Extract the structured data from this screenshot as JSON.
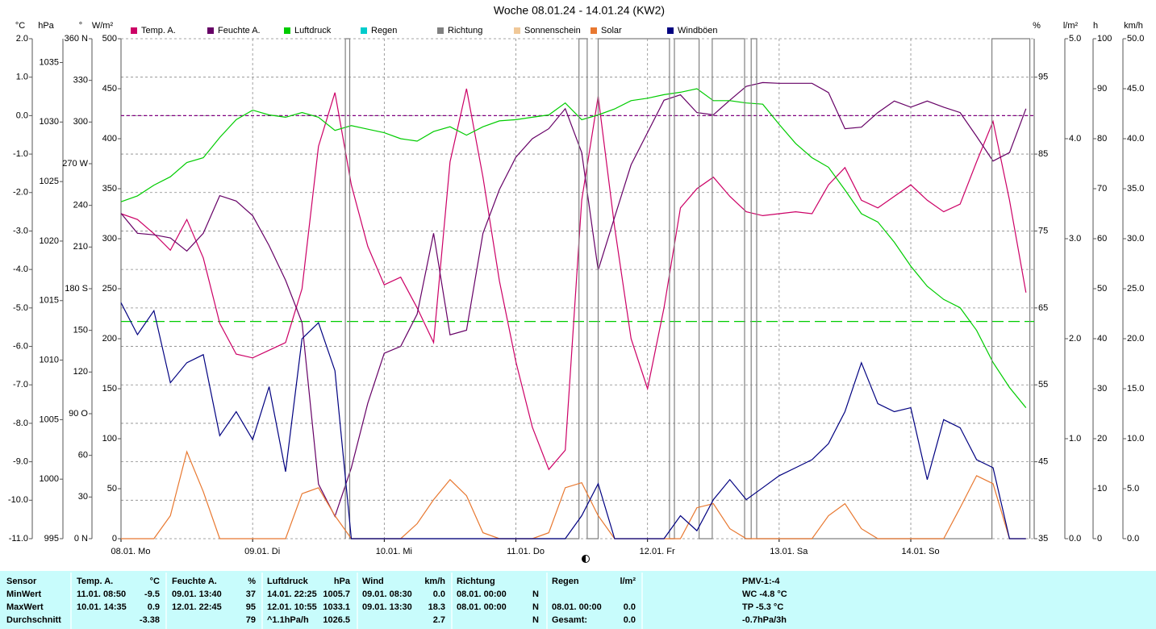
{
  "chart_data": {
    "type": "line",
    "title": "Woche 08.01.24 - 14.01.24 (KW2)",
    "xlim": [
      0,
      166.5
    ],
    "xticks": [
      {
        "value": 0,
        "label": "08.01. Mo"
      },
      {
        "value": 24,
        "label": "09.01. Di"
      },
      {
        "value": 48,
        "label": "10.01. Mi"
      },
      {
        "value": 72,
        "label": "11.01. Do"
      },
      {
        "value": 96,
        "label": "12.01. Fr"
      },
      {
        "value": 120,
        "label": "13.01. Sa"
      },
      {
        "value": 144,
        "label": "14.01. So"
      }
    ],
    "x": [
      0,
      3,
      6,
      9,
      12,
      15,
      18,
      21,
      24,
      27,
      30,
      33,
      36,
      39,
      42,
      45,
      48,
      51,
      54,
      57,
      60,
      63,
      66,
      69,
      72,
      75,
      78,
      81,
      84,
      87,
      90,
      93,
      96,
      99,
      102,
      105,
      108,
      111,
      114,
      117,
      120,
      123,
      126,
      129,
      132,
      135,
      138,
      141,
      144,
      147,
      150,
      153,
      156,
      159,
      162,
      165
    ],
    "axes": {
      "temp": {
        "label": "°C",
        "color": "#cc0066",
        "grid": true,
        "ylim": [
          -11,
          2
        ],
        "yticks": [
          {
            "value": 2,
            "label": "2.0"
          },
          {
            "value": 1,
            "label": "1.0"
          },
          {
            "value": 0,
            "label": "0.0"
          },
          {
            "value": -1,
            "label": "-1.0"
          },
          {
            "value": -2,
            "label": "-2.0"
          },
          {
            "value": -3,
            "label": "-3.0"
          },
          {
            "value": -4,
            "label": "-4.0"
          },
          {
            "value": -5,
            "label": "-5.0"
          },
          {
            "value": -6,
            "label": "-6.0"
          },
          {
            "value": -7,
            "label": "-7.0"
          },
          {
            "value": -8,
            "label": "-8.0"
          },
          {
            "value": -9,
            "label": "-9.0"
          },
          {
            "value": -10,
            "label": "-10.0"
          },
          {
            "value": -11,
            "label": "-11.0"
          }
        ]
      },
      "hpa": {
        "label": "hPa",
        "color": "#00bb00",
        "ylim": [
          995,
          1037
        ],
        "yticks": [
          995,
          1000,
          1005,
          1010,
          1015,
          1020,
          1025,
          1030,
          1035
        ]
      },
      "dir": {
        "label": "°",
        "color": "#808080",
        "ylim": [
          0,
          360
        ],
        "yticks": [
          {
            "value": 0,
            "label": "0 N"
          },
          30,
          60,
          {
            "value": 90,
            "label": "90 O"
          },
          120,
          150,
          {
            "value": 180,
            "label": "180 S"
          },
          210,
          240,
          {
            "value": 270,
            "label": "270 W"
          },
          300,
          330,
          {
            "value": 360,
            "label": "360 N"
          }
        ]
      },
      "solar": {
        "label": "W/m²",
        "color": "#e8702a",
        "ylim": [
          0,
          500
        ],
        "yticks": [
          0,
          50,
          100,
          150,
          200,
          250,
          300,
          350,
          400,
          450,
          500
        ]
      },
      "hum": {
        "label": "%",
        "color": "#800080",
        "ylim": [
          35,
          100
        ],
        "yticks": [
          35,
          45,
          55,
          65,
          75,
          85,
          95
        ]
      },
      "rain": {
        "label": "l/m²",
        "color": "#00cccc",
        "ylim": [
          0,
          5
        ],
        "yticks": [
          {
            "value": 0,
            "label": "0.0"
          },
          {
            "value": 1,
            "label": "1.0"
          },
          {
            "value": 2,
            "label": "2.0"
          },
          {
            "value": 3,
            "label": "3.0"
          },
          {
            "value": 4,
            "label": "4.0"
          },
          {
            "value": 5,
            "label": "5.0"
          }
        ]
      },
      "sun": {
        "label": "h",
        "color": "#f0c898",
        "ylim": [
          0,
          100
        ],
        "yticks": [
          0,
          10,
          20,
          30,
          40,
          50,
          60,
          70,
          80,
          90,
          100
        ]
      },
      "wind": {
        "label": "km/h",
        "color": "#000080",
        "ylim": [
          0,
          50
        ],
        "yticks": [
          {
            "value": 0,
            "label": "0.0"
          },
          {
            "value": 5,
            "label": "5.0"
          },
          {
            "value": 10,
            "label": "10.0"
          },
          {
            "value": 15,
            "label": "15.0"
          },
          {
            "value": 20,
            "label": "20.0"
          },
          {
            "value": 25,
            "label": "25.0"
          },
          {
            "value": 30,
            "label": "30.0"
          },
          {
            "value": 35,
            "label": "35.0"
          },
          {
            "value": 40,
            "label": "40.0"
          },
          {
            "value": 45,
            "label": "45.0"
          },
          {
            "value": 50,
            "label": "50.0"
          }
        ]
      }
    },
    "reference_lines": [
      {
        "axis": "temp",
        "value": 0,
        "color": "#800080"
      },
      {
        "axis": "hpa",
        "value": 1013.25,
        "color": "#00cc00"
      }
    ],
    "series": [
      {
        "name": "Temp. A.",
        "color": "#cc0066",
        "axis": "temp",
        "values": [
          -2.55,
          -2.7,
          -3.07,
          -3.5,
          -2.7,
          -3.7,
          -5.4,
          -6.2,
          -6.3,
          -6.1,
          -5.9,
          -4.5,
          -0.8,
          0.6,
          -1.8,
          -3.4,
          -4.4,
          -4.2,
          -5.0,
          -5.9,
          -1.2,
          0.7,
          -1.6,
          -4.3,
          -6.4,
          -8.1,
          -9.2,
          -8.7,
          -2.2,
          0.5,
          -2.9,
          -5.8,
          -7.1,
          -5.0,
          -2.4,
          -1.9,
          -1.6,
          -2.1,
          -2.5,
          -2.6,
          -2.55,
          -2.5,
          -2.55,
          -1.8,
          -1.35,
          -2.2,
          -2.4,
          -2.1,
          -1.8,
          -2.2,
          -2.5,
          -2.3,
          -1.2,
          -0.15,
          -2.2,
          -4.6
        ]
      },
      {
        "name": "Feuchte A.",
        "color": "#660066",
        "axis": "hum",
        "values": [
          77.3,
          74.7,
          74.5,
          74.1,
          72.4,
          74.7,
          79.6,
          78.9,
          77.0,
          73.1,
          68.6,
          63.1,
          42.1,
          37.9,
          44.2,
          52.6,
          59.1,
          60.0,
          64.2,
          74.7,
          61.5,
          62.1,
          74.7,
          80.4,
          84.6,
          87.0,
          88.3,
          90.9,
          85.2,
          69.9,
          76.8,
          83.6,
          87.8,
          92.0,
          92.7,
          90.4,
          90.1,
          92.0,
          93.8,
          94.3,
          94.2,
          94.2,
          94.2,
          93.0,
          88.3,
          88.5,
          90.4,
          91.9,
          91.1,
          91.9,
          91.1,
          90.4,
          87.3,
          84.1,
          85.2,
          90.9
        ]
      },
      {
        "name": "Luftdruck",
        "color": "#00cc00",
        "axis": "hpa",
        "values": [
          1023.3,
          1023.8,
          1024.7,
          1025.4,
          1026.6,
          1027.0,
          1028.7,
          1030.2,
          1031.0,
          1030.6,
          1030.4,
          1030.8,
          1030.4,
          1029.3,
          1029.7,
          1029.4,
          1029.1,
          1028.6,
          1028.4,
          1029.2,
          1029.6,
          1028.9,
          1029.6,
          1030.1,
          1030.2,
          1030.4,
          1030.6,
          1031.6,
          1030.2,
          1030.6,
          1031.1,
          1031.8,
          1032.0,
          1032.3,
          1032.5,
          1032.8,
          1031.8,
          1031.8,
          1031.6,
          1031.5,
          1029.8,
          1028.2,
          1027.0,
          1026.2,
          1024.3,
          1022.3,
          1021.6,
          1019.9,
          1017.9,
          1016.2,
          1015.1,
          1014.4,
          1012.5,
          1009.8,
          1007.7,
          1006.0
        ]
      },
      {
        "name": "Regen",
        "color": "#00cccc",
        "axis": "rain"
      },
      {
        "name": "Richtung",
        "color": "#808080",
        "axis": "dir",
        "x": [
          40.9,
          40.9,
          41.7,
          41.7,
          83.5,
          83.5,
          85.0,
          85.0,
          87.0,
          87.0,
          100.0,
          100.0,
          100.9,
          100.9,
          105.4,
          105.4,
          107.8,
          107.8,
          113.7,
          113.7,
          114.9,
          114.9,
          115.9,
          115.9,
          158.8,
          158.8,
          165.7,
          165.7
        ],
        "values": [
          0,
          360,
          360,
          0,
          0,
          360,
          360,
          0,
          0,
          360,
          360,
          0,
          0,
          360,
          360,
          0,
          0,
          360,
          360,
          0,
          0,
          360,
          360,
          0,
          0,
          360,
          360,
          0
        ]
      },
      {
        "name": "Sonnenschein",
        "color": "#f0c898",
        "axis": "sun"
      },
      {
        "name": "Solar",
        "color": "#e87830",
        "axis": "solar",
        "values": [
          0,
          0,
          0,
          23,
          87,
          47,
          0,
          0,
          0,
          0,
          0,
          45,
          51,
          23,
          0,
          0,
          0,
          0,
          15,
          39,
          59,
          43,
          6,
          0,
          0,
          0,
          6,
          51,
          56,
          23,
          0,
          0,
          0,
          0,
          0,
          31,
          35,
          10,
          0,
          0,
          0,
          0,
          0,
          23,
          35,
          10,
          0,
          0,
          0,
          0,
          0,
          31,
          63,
          55,
          0,
          0
        ]
      },
      {
        "name": "Windböen",
        "color": "#000080",
        "axis": "wind",
        "values": [
          23.6,
          20.4,
          22.8,
          15.6,
          17.6,
          18.4,
          10.3,
          12.7,
          9.9,
          15.2,
          6.7,
          20.0,
          21.6,
          16.8,
          0,
          0,
          0,
          0,
          0,
          0,
          0,
          0,
          0,
          0,
          0,
          0,
          0,
          0,
          2.3,
          5.5,
          0,
          0,
          0,
          0,
          2.3,
          0.8,
          3.9,
          5.9,
          3.9,
          5.1,
          6.3,
          7.1,
          7.9,
          9.5,
          12.7,
          17.6,
          13.5,
          12.7,
          13.1,
          5.9,
          11.9,
          11.1,
          7.9,
          7.1,
          0,
          0
        ]
      }
    ]
  },
  "table": {
    "rows": [
      [
        "Sensor",
        "Temp. A.",
        "°C",
        "Feuchte A.",
        "%",
        "Luftdruck",
        "hPa",
        "Wind",
        "km/h",
        "Richtung",
        null,
        "Regen",
        "l/m²",
        "PMV-1:-4"
      ],
      [
        "MinWert",
        "11.01.  08:50",
        "-9.5",
        "09.01.  13:40",
        "37",
        "14.01.  22:25",
        "1005.7",
        "09.01.  08:30",
        "0.0",
        "08.01.  00:00",
        "N",
        null,
        null,
        "WC -4.8 °C"
      ],
      [
        "MaxWert",
        "10.01.  14:35",
        "0.9",
        "12.01.  22:45",
        "95",
        "12.01.  10:55",
        "1033.1",
        "09.01.  13:30",
        "18.3",
        "08.01.  00:00",
        "N",
        "08.01.  00:00",
        "0.0",
        "TP -5.3 °C"
      ],
      [
        "Durchschnitt",
        null,
        "-3.38",
        null,
        "79",
        "^1.1hPa/h",
        "1026.5",
        null,
        "2.7",
        null,
        "N",
        "Gesamt:",
        "0.0",
        "-0.7hPa/3h"
      ]
    ]
  }
}
